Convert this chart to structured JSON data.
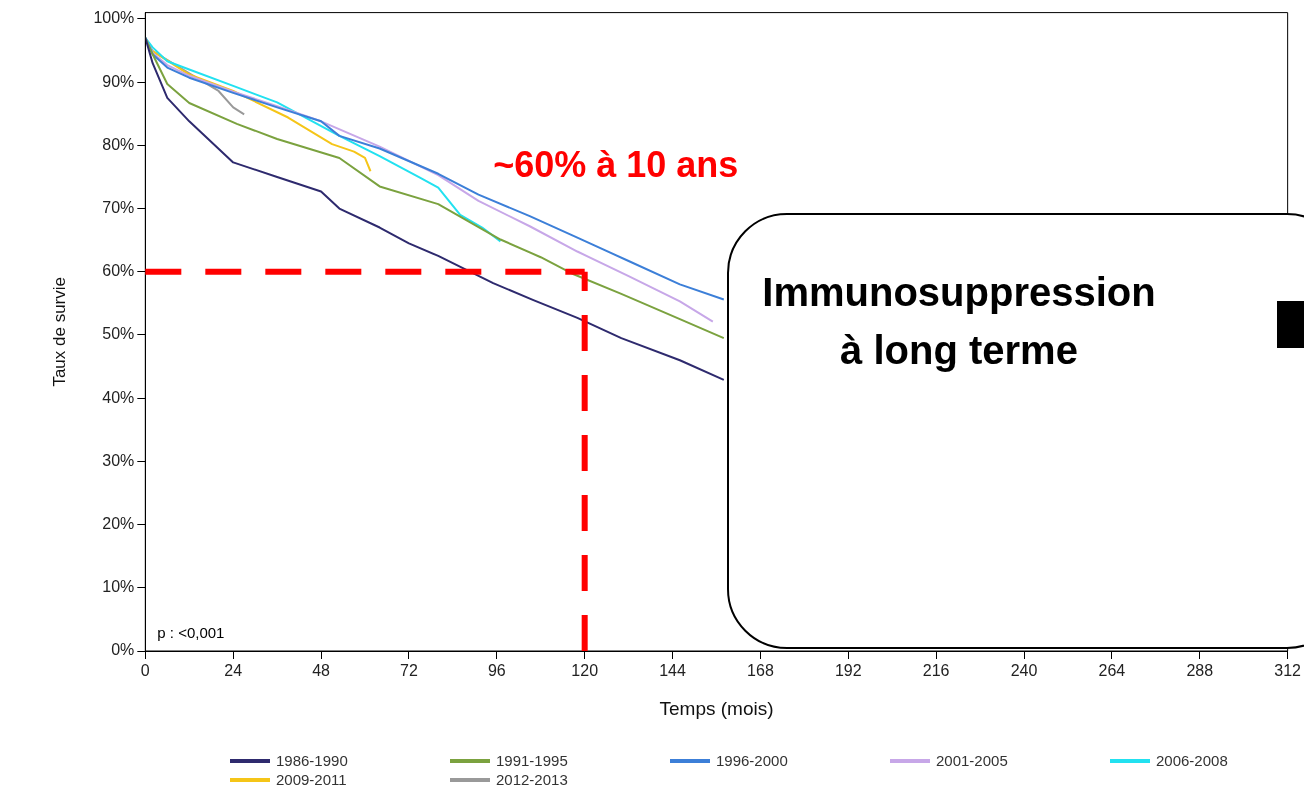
{
  "chart_data": {
    "type": "line",
    "xlabel": "Temps (mois)",
    "ylabel": "Taux de survie",
    "xlim": [
      0,
      312
    ],
    "xticks": [
      0,
      24,
      48,
      72,
      96,
      120,
      144,
      168,
      192,
      216,
      240,
      264,
      288,
      312
    ],
    "ylim": [
      0,
      101
    ],
    "yticks": [
      {
        "value": 0,
        "label": "0%"
      },
      {
        "value": 10,
        "label": "10%"
      },
      {
        "value": 20,
        "label": "20%"
      },
      {
        "value": 30,
        "label": "30%"
      },
      {
        "value": 40,
        "label": "40%"
      },
      {
        "value": 50,
        "label": "50%"
      },
      {
        "value": 60,
        "label": "60%"
      },
      {
        "value": 70,
        "label": "70%"
      },
      {
        "value": 80,
        "label": "80%"
      },
      {
        "value": 90,
        "label": "90%"
      },
      {
        "value": 100,
        "label": "100%"
      }
    ],
    "legend": "bottom",
    "marker": "none",
    "line_style": "solid",
    "series": [
      {
        "name": "1986-1990",
        "color": "#2e2a6e",
        "x": [
          0,
          2,
          6,
          12,
          24,
          36,
          48,
          53,
          64,
          72,
          80,
          95,
          106,
          118,
          130,
          146,
          158
        ],
        "values": [
          97,
          93,
          87.5,
          83.8,
          77.3,
          75,
          72.7,
          70,
          67,
          64.5,
          62.5,
          58.2,
          55.5,
          52.7,
          49.5,
          46,
          42.9
        ]
      },
      {
        "name": "1991-1995",
        "color": "#7ba23f",
        "x": [
          0,
          2,
          6,
          12,
          25,
          36,
          53,
          64,
          80,
          97,
          108,
          117,
          130,
          146,
          158
        ],
        "values": [
          97,
          94.4,
          89.7,
          86.7,
          83.4,
          81,
          78,
          73.5,
          70.7,
          65.1,
          62.3,
          59.6,
          56.5,
          52.5,
          49.5
        ]
      },
      {
        "name": "1996-2000",
        "color": "#3c7fd8",
        "x": [
          0,
          2,
          6,
          12,
          24,
          36,
          48,
          53,
          64,
          80,
          91,
          105,
          118,
          132,
          146,
          158
        ],
        "values": [
          97,
          94.4,
          92.3,
          90.7,
          88.3,
          86,
          83.8,
          81.5,
          79.5,
          75.5,
          72.2,
          68.8,
          65.4,
          61.7,
          58,
          55.6
        ]
      },
      {
        "name": "2001-2005",
        "color": "#c7a7e8",
        "x": [
          0,
          2,
          6,
          12,
          24,
          36,
          48,
          64,
          80,
          91,
          105,
          118,
          132,
          146,
          155
        ],
        "values": [
          97,
          94.6,
          92.7,
          91,
          88.5,
          86.2,
          83.8,
          79.8,
          75.3,
          71.2,
          67.2,
          63.2,
          59.3,
          55.3,
          52.1
        ]
      },
      {
        "name": "2006-2008",
        "color": "#22e1f0",
        "x": [
          0,
          2,
          6,
          12,
          24,
          36,
          53,
          64,
          75,
          80,
          86,
          92,
          97
        ],
        "values": [
          97,
          95.5,
          93.3,
          92,
          89.4,
          86.8,
          81.5,
          78.3,
          74.9,
          73.3,
          69,
          67,
          64.8
        ]
      },
      {
        "name": "2009-2011",
        "color": "#f5c518",
        "x": [
          2,
          12,
          24,
          39,
          51,
          57,
          60,
          61.5
        ],
        "values": [
          94.9,
          91.2,
          88.6,
          84.4,
          80.2,
          79,
          78,
          75.9
        ]
      },
      {
        "name": "2012-2013",
        "color": "#999999",
        "x": [
          0,
          2,
          12,
          20,
          24,
          27
        ],
        "values": [
          97,
          94.9,
          91.4,
          88.6,
          86,
          84.9
        ]
      }
    ],
    "ref_lines": [
      {
        "axis": "y",
        "value": 60,
        "color": "#ff0000",
        "line_style": "dashed"
      },
      {
        "axis": "x",
        "value": 120,
        "color": "#ff0000",
        "line_style": "dashed"
      }
    ],
    "annotations": [
      "~60% à 10 ans",
      "p : <0,001",
      "Immunosuppression à long terme"
    ]
  }
}
